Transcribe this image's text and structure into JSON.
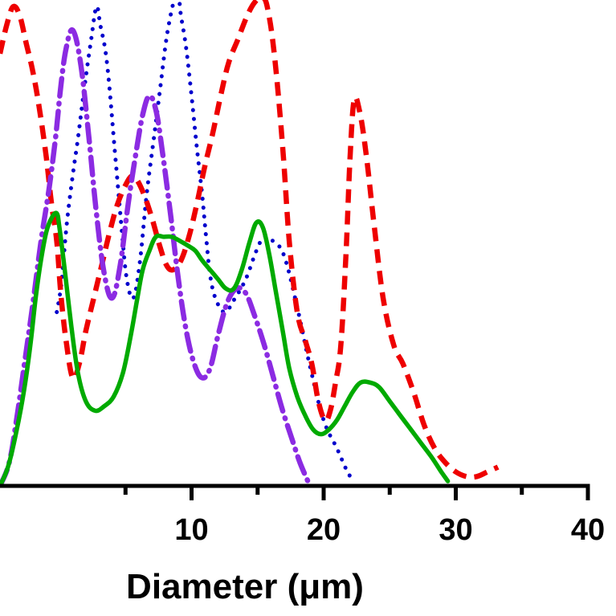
{
  "chart_data": {
    "type": "line",
    "title": "",
    "xlabel": "Diameter (μm)",
    "ylabel": "",
    "xlim": [
      -4.5,
      40
    ],
    "ylim": [
      0,
      100
    ],
    "xticks": [
      10,
      20,
      30,
      40
    ],
    "xtick_labels": [
      "10",
      "20",
      "30",
      "40"
    ],
    "series": [
      {
        "name": "dotted-blue",
        "color": "#0000cc",
        "style": "dotted",
        "x": [
          -0.2,
          0.1,
          0.3,
          0.6,
          1.0,
          1.4,
          1.9,
          2.4,
          2.8,
          3.1,
          3.6,
          4.2,
          4.7,
          5.1,
          5.6,
          6.1,
          6.6,
          7.1,
          7.6,
          8.2,
          8.9,
          9.2,
          9.6,
          10.0,
          10.4,
          10.8,
          11.1,
          11.4,
          11.8,
          12.5,
          13.3,
          14.1,
          14.9,
          15.5,
          16.2,
          17.0,
          18.0,
          19.0,
          20.0,
          21.0,
          21.8,
          22.3
        ],
        "y": [
          37,
          42,
          48,
          57,
          66,
          74,
          85,
          95,
          102,
          98,
          90,
          71,
          55,
          44,
          40,
          48,
          62,
          73,
          84,
          97,
          105,
          100,
          93,
          83,
          72,
          62,
          53,
          45,
          40,
          37,
          40,
          44,
          50,
          53,
          52,
          49,
          38,
          25,
          14,
          8,
          3,
          1
        ]
      },
      {
        "name": "dashed-red",
        "color": "#ee0000",
        "style": "dashed",
        "x": [
          -4.5,
          -4.0,
          -3.5,
          -3.0,
          -2.5,
          -2.0,
          -1.5,
          -1.0,
          -0.6,
          -0.2,
          0.1,
          0.5,
          1.0,
          1.5,
          2.0,
          2.6,
          3.2,
          3.8,
          4.4,
          5.0,
          5.5,
          5.9,
          6.4,
          7.0,
          7.6,
          8.1,
          8.6,
          9.2,
          9.8,
          10.4,
          11.0,
          11.6,
          12.2,
          12.8,
          13.5,
          14.2,
          14.8,
          15.4,
          15.8,
          16.3,
          16.9,
          17.4,
          18.0,
          18.6,
          19.1,
          19.6,
          20.1,
          20.5,
          20.9,
          21.3,
          21.7,
          22.0,
          22.3,
          22.7,
          23.2,
          23.8,
          24.5,
          25.3,
          26.0,
          26.8,
          27.6,
          28.4,
          29.2,
          30.0,
          30.8,
          31.6,
          32.4,
          33.2
        ],
        "y": [
          92,
          98,
          102,
          100,
          94,
          88,
          80,
          70,
          60,
          52,
          41,
          31,
          23,
          26,
          33,
          40,
          47,
          54,
          60,
          64,
          66,
          65,
          62,
          57,
          51,
          47,
          46,
          48,
          53,
          60,
          68,
          75,
          83,
          90,
          95,
          100,
          103,
          104,
          101,
          91,
          72,
          52,
          37,
          31,
          26,
          18,
          14,
          16,
          22,
          30,
          50,
          70,
          82,
          80,
          71,
          56,
          40,
          30,
          26,
          20,
          13,
          8,
          5,
          3,
          2,
          2,
          3,
          4
        ]
      },
      {
        "name": "dashdot-purple",
        "color": "#8b2be2",
        "style": "dashdot",
        "x": [
          -4.5,
          -3.8,
          -3.2,
          -2.6,
          -2.0,
          -1.4,
          -0.8,
          -0.3,
          0.1,
          0.5,
          1.0,
          1.6,
          2.2,
          2.8,
          3.4,
          4.0,
          4.6,
          5.2,
          5.8,
          6.3,
          6.8,
          7.3,
          7.8,
          8.4,
          9.0,
          9.6,
          10.2,
          10.8,
          11.4,
          12.0,
          12.7,
          13.4,
          14.1,
          14.8,
          15.5,
          16.2,
          16.9,
          17.6,
          18.2,
          18.8
        ],
        "y": [
          0,
          5,
          15,
          27,
          39,
          52,
          63,
          74,
          85,
          93,
          97,
          90,
          75,
          58,
          45,
          40,
          47,
          60,
          71,
          79,
          83,
          80,
          71,
          58,
          44,
          33,
          26,
          23,
          25,
          32,
          39,
          42,
          41,
          36,
          30,
          23,
          16,
          10,
          5,
          1
        ]
      },
      {
        "name": "solid-green",
        "color": "#00aa00",
        "style": "solid",
        "x": [
          -4.5,
          -3.9,
          -3.3,
          -2.7,
          -2.2,
          -1.8,
          -1.4,
          -1.0,
          -0.6,
          -0.2,
          0.0,
          0.4,
          0.9,
          1.4,
          2.0,
          2.7,
          3.4,
          4.1,
          4.8,
          5.4,
          5.9,
          6.3,
          6.8,
          7.3,
          7.9,
          8.5,
          9.2,
          9.8,
          10.3,
          10.8,
          11.4,
          12.0,
          12.6,
          13.2,
          13.8,
          14.4,
          14.9,
          15.4,
          15.9,
          16.4,
          16.9,
          17.4,
          18.0,
          18.6,
          19.2,
          19.8,
          20.4,
          21.0,
          21.6,
          22.2,
          22.8,
          23.5,
          24.2,
          25.0,
          25.8,
          26.6,
          27.4,
          28.2,
          28.9,
          29.4
        ],
        "y": [
          0,
          4,
          11,
          20,
          30,
          40,
          48,
          54,
          57,
          58,
          55,
          46,
          34,
          24,
          18,
          16,
          17,
          19,
          24,
          32,
          40,
          46,
          50,
          53,
          53,
          53,
          52,
          51,
          50,
          48,
          46,
          44,
          42,
          42,
          46,
          52,
          56,
          55,
          49,
          41,
          33,
          25,
          19,
          15,
          12,
          11,
          12,
          14,
          17,
          20,
          22,
          22,
          21,
          18,
          15,
          12,
          9,
          6,
          3,
          1
        ]
      }
    ]
  }
}
